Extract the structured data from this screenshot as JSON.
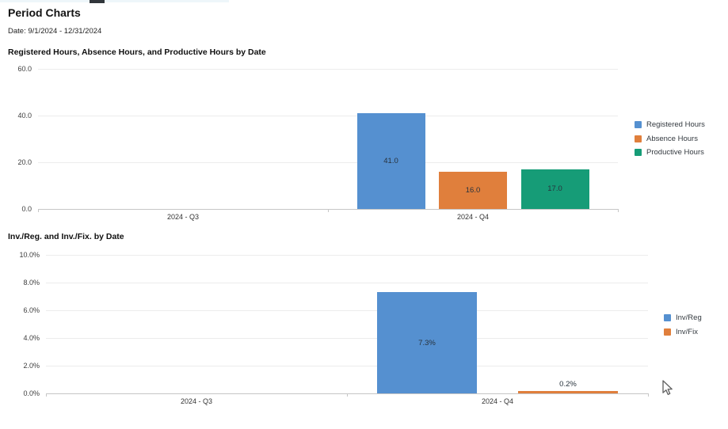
{
  "page": {
    "title": "Period Charts",
    "date_label": "Date: 9/1/2024 - 12/31/2024"
  },
  "colors": {
    "series_blue": "#5590d0",
    "series_orange": "#e07f3c",
    "series_green": "#169c77",
    "gridline": "#ececec",
    "axis": "#c6c6c6"
  },
  "chart_data": [
    {
      "type": "bar",
      "title": "Registered Hours, Absence Hours, and Productive Hours by Date",
      "categories": [
        "2024 - Q3",
        "2024 - Q4"
      ],
      "series": [
        {
          "name": "Registered Hours",
          "color": "#5590d0",
          "values": [
            null,
            41.0
          ],
          "value_labels": [
            null,
            "41.0"
          ]
        },
        {
          "name": "Absence Hours",
          "color": "#e07f3c",
          "values": [
            null,
            16.0
          ],
          "value_labels": [
            null,
            "16.0"
          ]
        },
        {
          "name": "Productive Hours",
          "color": "#169c77",
          "values": [
            null,
            17.0
          ],
          "value_labels": [
            null,
            "17.0"
          ]
        }
      ],
      "ylim": [
        0,
        60
      ],
      "yticks": [
        0,
        20,
        40,
        60
      ],
      "ytick_labels": [
        "0.0",
        "20.0",
        "40.0",
        "60.0"
      ],
      "xlabel": "",
      "ylabel": "",
      "grid": "horizontal",
      "legend_position": "right"
    },
    {
      "type": "bar",
      "title": "Inv./Reg. and Inv./Fix. by Date",
      "categories": [
        "2024 - Q3",
        "2024 - Q4"
      ],
      "series": [
        {
          "name": "Inv/Reg",
          "color": "#5590d0",
          "values": [
            null,
            7.3
          ],
          "value_labels": [
            null,
            "7.3%"
          ]
        },
        {
          "name": "Inv/Fix",
          "color": "#e07f3c",
          "values": [
            null,
            0.2
          ],
          "value_labels": [
            null,
            "0.2%"
          ]
        }
      ],
      "ylim": [
        0,
        10
      ],
      "yticks": [
        0,
        2,
        4,
        6,
        8,
        10
      ],
      "ytick_labels": [
        "0.0%",
        "2.0%",
        "4.0%",
        "6.0%",
        "8.0%",
        "10.0%"
      ],
      "xlabel": "",
      "ylabel": "",
      "grid": "horizontal",
      "legend_position": "right"
    }
  ]
}
